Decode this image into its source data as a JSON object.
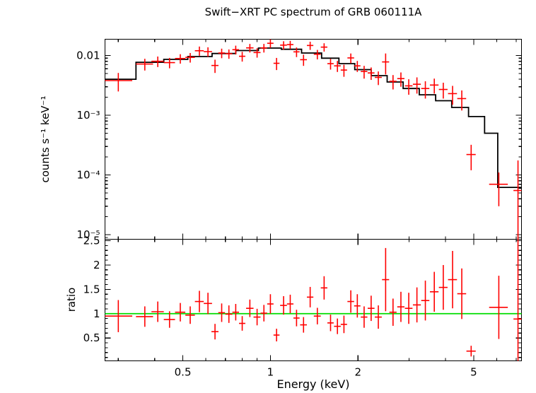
{
  "title": "Swift−XRT PC spectrum of GRB 060111A",
  "axes": {
    "x_label": "Energy (keV)",
    "y_label_top": "counts s⁻¹ keV⁻¹",
    "y_label_bottom": "ratio",
    "x_ticks": [
      {
        "v": 0.5,
        "label": "0.5"
      },
      {
        "v": 1,
        "label": "1"
      },
      {
        "v": 2,
        "label": "2"
      },
      {
        "v": 5,
        "label": "5"
      }
    ],
    "x_minor": [
      0.3,
      0.4,
      0.6,
      0.7,
      0.8,
      0.9,
      3,
      4,
      6,
      7
    ],
    "flux_ticks": [
      {
        "v": 0.01,
        "label": "0.01"
      },
      {
        "v": 0.001,
        "label": "10⁻³"
      },
      {
        "v": 0.0001,
        "label": "10⁻⁴"
      },
      {
        "v": 1e-05,
        "label": "10⁻⁵"
      }
    ],
    "ratio_ticks": [
      {
        "v": 2.5,
        "label": "2.5"
      },
      {
        "v": 2,
        "label": "2"
      },
      {
        "v": 1.5,
        "label": "1.5"
      },
      {
        "v": 1,
        "label": "1"
      },
      {
        "v": 0.5,
        "label": "0.5"
      }
    ]
  },
  "colors": {
    "data": "#ff0000",
    "model": "#000000",
    "ratio_line": "#00dd00",
    "frame": "#000000",
    "background": "#ffffff"
  },
  "chart_data": {
    "type": "scatter",
    "title": "Swift−XRT PC spectrum of GRB 060111A",
    "xlabel": "Energy (keV)",
    "xscale": "log",
    "xlim": [
      0.27,
      7.3
    ],
    "grid": false,
    "legend": "none",
    "panels": [
      {
        "name": "spectrum",
        "ylabel": "counts s⁻¹ keV⁻¹",
        "yscale": "log",
        "ylim": [
          8.4e-06,
          0.0187
        ],
        "model_steps": [
          [
            0.27,
            0.345,
            0.004
          ],
          [
            0.345,
            0.43,
            0.0077
          ],
          [
            0.43,
            0.52,
            0.0086
          ],
          [
            0.52,
            0.63,
            0.0096
          ],
          [
            0.63,
            0.76,
            0.0108
          ],
          [
            0.76,
            0.91,
            0.0121
          ],
          [
            0.91,
            1.09,
            0.0133
          ],
          [
            1.09,
            1.28,
            0.0127
          ],
          [
            1.28,
            1.5,
            0.011
          ],
          [
            1.5,
            1.72,
            0.009
          ],
          [
            1.72,
            1.95,
            0.0073
          ],
          [
            1.95,
            2.22,
            0.0058
          ],
          [
            2.22,
            2.52,
            0.0046
          ],
          [
            2.52,
            2.86,
            0.0036
          ],
          [
            2.86,
            3.25,
            0.0028
          ],
          [
            3.25,
            3.7,
            0.0022
          ],
          [
            3.7,
            4.2,
            0.00175
          ],
          [
            4.2,
            4.8,
            0.00135
          ],
          [
            4.8,
            5.45,
            0.00095
          ],
          [
            5.45,
            6.05,
            0.0005
          ],
          [
            6.05,
            7.3,
            6.2e-05
          ]
        ],
        "points": [
          [
            0.3,
            0.035,
            0.0038,
            0.0013
          ],
          [
            0.37,
            0.025,
            0.0072,
            0.0016
          ],
          [
            0.41,
            0.02,
            0.008,
            0.0016
          ],
          [
            0.45,
            0.02,
            0.0076,
            0.0015
          ],
          [
            0.49,
            0.02,
            0.0089,
            0.0016
          ],
          [
            0.53,
            0.02,
            0.0093,
            0.0017
          ],
          [
            0.57,
            0.02,
            0.012,
            0.0021
          ],
          [
            0.61,
            0.02,
            0.0116,
            0.0021
          ],
          [
            0.645,
            0.018,
            0.0068,
            0.0017
          ],
          [
            0.68,
            0.018,
            0.011,
            0.002
          ],
          [
            0.72,
            0.02,
            0.0107,
            0.0019
          ],
          [
            0.76,
            0.02,
            0.0125,
            0.0021
          ],
          [
            0.8,
            0.02,
            0.0097,
            0.0018
          ],
          [
            0.85,
            0.025,
            0.0134,
            0.0022
          ],
          [
            0.9,
            0.025,
            0.0112,
            0.002
          ],
          [
            0.95,
            0.025,
            0.0134,
            0.0022
          ],
          [
            1.0,
            0.025,
            0.016,
            0.0026
          ],
          [
            1.05,
            0.025,
            0.0074,
            0.0017
          ],
          [
            1.11,
            0.03,
            0.0149,
            0.0024
          ],
          [
            1.17,
            0.03,
            0.0152,
            0.0024
          ],
          [
            1.23,
            0.03,
            0.0115,
            0.0021
          ],
          [
            1.3,
            0.035,
            0.0085,
            0.0018
          ],
          [
            1.37,
            0.035,
            0.0147,
            0.0023
          ],
          [
            1.45,
            0.04,
            0.0105,
            0.0019
          ],
          [
            1.53,
            0.04,
            0.0138,
            0.0022
          ],
          [
            1.61,
            0.04,
            0.0073,
            0.0015
          ],
          [
            1.7,
            0.045,
            0.0067,
            0.0014
          ],
          [
            1.79,
            0.045,
            0.0057,
            0.0013
          ],
          [
            1.89,
            0.05,
            0.0091,
            0.0017
          ],
          [
            1.99,
            0.05,
            0.0067,
            0.0014
          ],
          [
            2.1,
            0.055,
            0.0054,
            0.0013
          ],
          [
            2.22,
            0.06,
            0.0051,
            0.0012
          ],
          [
            2.35,
            0.065,
            0.0043,
            0.0011
          ],
          [
            2.49,
            0.07,
            0.0078,
            0.003
          ],
          [
            2.64,
            0.075,
            0.0037,
            0.001
          ],
          [
            2.81,
            0.08,
            0.0041,
            0.0011
          ],
          [
            2.99,
            0.09,
            0.0031,
            0.0009
          ],
          [
            3.19,
            0.1,
            0.0033,
            0.001
          ],
          [
            3.41,
            0.11,
            0.0028,
            0.0009
          ],
          [
            3.66,
            0.125,
            0.0032,
            0.0009
          ],
          [
            3.93,
            0.135,
            0.0027,
            0.0008
          ],
          [
            4.23,
            0.15,
            0.0023,
            0.0008
          ],
          [
            4.55,
            0.16,
            0.0019,
            0.0007
          ],
          [
            4.9,
            0.18,
            0.00022,
            0.0001
          ],
          [
            6.1,
            0.45,
            7e-05,
            4e-05
          ],
          [
            7.1,
            0.25,
            5.5e-05,
            0.00012
          ]
        ]
      },
      {
        "name": "ratio",
        "ylabel": "ratio",
        "yscale": "linear",
        "ylim": [
          0.03,
          2.53
        ],
        "reference_line": 1,
        "points": [
          [
            0.3,
            0.035,
            0.95,
            0.33
          ],
          [
            0.37,
            0.025,
            0.94,
            0.21
          ],
          [
            0.41,
            0.02,
            1.04,
            0.21
          ],
          [
            0.45,
            0.02,
            0.88,
            0.17
          ],
          [
            0.49,
            0.02,
            1.03,
            0.19
          ],
          [
            0.53,
            0.02,
            0.97,
            0.18
          ],
          [
            0.57,
            0.02,
            1.25,
            0.22
          ],
          [
            0.61,
            0.02,
            1.21,
            0.22
          ],
          [
            0.645,
            0.018,
            0.63,
            0.16
          ],
          [
            0.68,
            0.018,
            1.02,
            0.19
          ],
          [
            0.72,
            0.02,
            0.99,
            0.18
          ],
          [
            0.76,
            0.02,
            1.03,
            0.17
          ],
          [
            0.8,
            0.02,
            0.8,
            0.15
          ],
          [
            0.85,
            0.025,
            1.11,
            0.18
          ],
          [
            0.9,
            0.025,
            0.93,
            0.17
          ],
          [
            0.95,
            0.025,
            1.01,
            0.17
          ],
          [
            1.0,
            0.025,
            1.2,
            0.2
          ],
          [
            1.05,
            0.025,
            0.56,
            0.13
          ],
          [
            1.11,
            0.03,
            1.17,
            0.19
          ],
          [
            1.17,
            0.03,
            1.2,
            0.19
          ],
          [
            1.23,
            0.03,
            0.91,
            0.17
          ],
          [
            1.3,
            0.035,
            0.77,
            0.16
          ],
          [
            1.37,
            0.035,
            1.34,
            0.21
          ],
          [
            1.45,
            0.04,
            0.95,
            0.17
          ],
          [
            1.53,
            0.04,
            1.53,
            0.24
          ],
          [
            1.61,
            0.04,
            0.81,
            0.17
          ],
          [
            1.7,
            0.045,
            0.74,
            0.16
          ],
          [
            1.79,
            0.045,
            0.78,
            0.18
          ],
          [
            1.89,
            0.05,
            1.25,
            0.23
          ],
          [
            1.99,
            0.05,
            1.16,
            0.24
          ],
          [
            2.1,
            0.055,
            0.93,
            0.22
          ],
          [
            2.22,
            0.06,
            1.11,
            0.26
          ],
          [
            2.35,
            0.065,
            0.93,
            0.24
          ],
          [
            2.49,
            0.07,
            1.7,
            0.65
          ],
          [
            2.64,
            0.075,
            1.03,
            0.28
          ],
          [
            2.81,
            0.08,
            1.14,
            0.31
          ],
          [
            2.99,
            0.09,
            1.11,
            0.32
          ],
          [
            3.19,
            0.1,
            1.18,
            0.36
          ],
          [
            3.41,
            0.11,
            1.27,
            0.41
          ],
          [
            3.66,
            0.125,
            1.45,
            0.41
          ],
          [
            3.93,
            0.135,
            1.54,
            0.46
          ],
          [
            4.23,
            0.15,
            1.7,
            0.59
          ],
          [
            4.55,
            0.16,
            1.41,
            0.52
          ],
          [
            4.9,
            0.18,
            0.23,
            0.11
          ],
          [
            6.1,
            0.45,
            1.13,
            0.65
          ],
          [
            7.1,
            0.25,
            0.89,
            1.9
          ]
        ]
      }
    ]
  }
}
